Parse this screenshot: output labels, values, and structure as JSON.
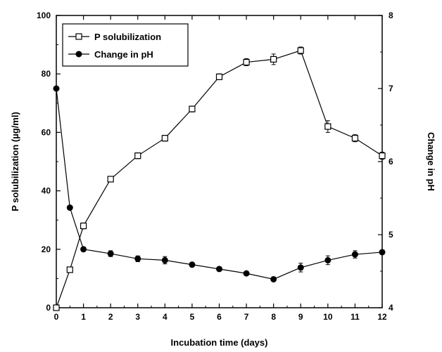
{
  "chart_data": {
    "type": "line",
    "x": [
      0,
      0.5,
      1,
      2,
      3,
      4,
      5,
      6,
      7,
      8,
      9,
      10,
      11,
      12
    ],
    "xlabel": "Incubation time (days)",
    "ylabel_left": "P solubilization (µg/ml)",
    "ylabel_right": "Change in pH",
    "xlim": [
      0,
      12
    ],
    "ylim_left": [
      0,
      100
    ],
    "ylim_right": [
      4,
      8
    ],
    "xticks": [
      "0",
      "1",
      "2",
      "3",
      "4",
      "5",
      "6",
      "7",
      "8",
      "9",
      "10",
      "11",
      "12"
    ],
    "yticks_left": [
      "0",
      "20",
      "40",
      "60",
      "80",
      "100"
    ],
    "yticks_right": [
      "4",
      "5",
      "6",
      "7",
      "8"
    ],
    "grid": false,
    "legend_position": "top-left",
    "series": [
      {
        "name": "P solubilization",
        "axis": "left",
        "marker": "open-square",
        "values": [
          0,
          13,
          28,
          44,
          52,
          58,
          68,
          79,
          84,
          85,
          88,
          62,
          58,
          52
        ],
        "errors": [
          0,
          0.8,
          1,
          0.8,
          1,
          1,
          1,
          1,
          1.2,
          1.8,
          1.2,
          2,
          1.2,
          1.2
        ]
      },
      {
        "name": "Change in pH",
        "axis": "right",
        "marker": "filled-circle",
        "values": [
          7.0,
          5.37,
          4.8,
          4.74,
          4.67,
          4.65,
          4.59,
          4.53,
          4.47,
          4.39,
          4.55,
          4.65,
          4.73,
          4.76
        ],
        "errors": [
          0,
          0,
          0.02,
          0.04,
          0.04,
          0.05,
          0.03,
          0.03,
          0.02,
          0.02,
          0.06,
          0.06,
          0.05,
          0.03
        ]
      }
    ]
  }
}
